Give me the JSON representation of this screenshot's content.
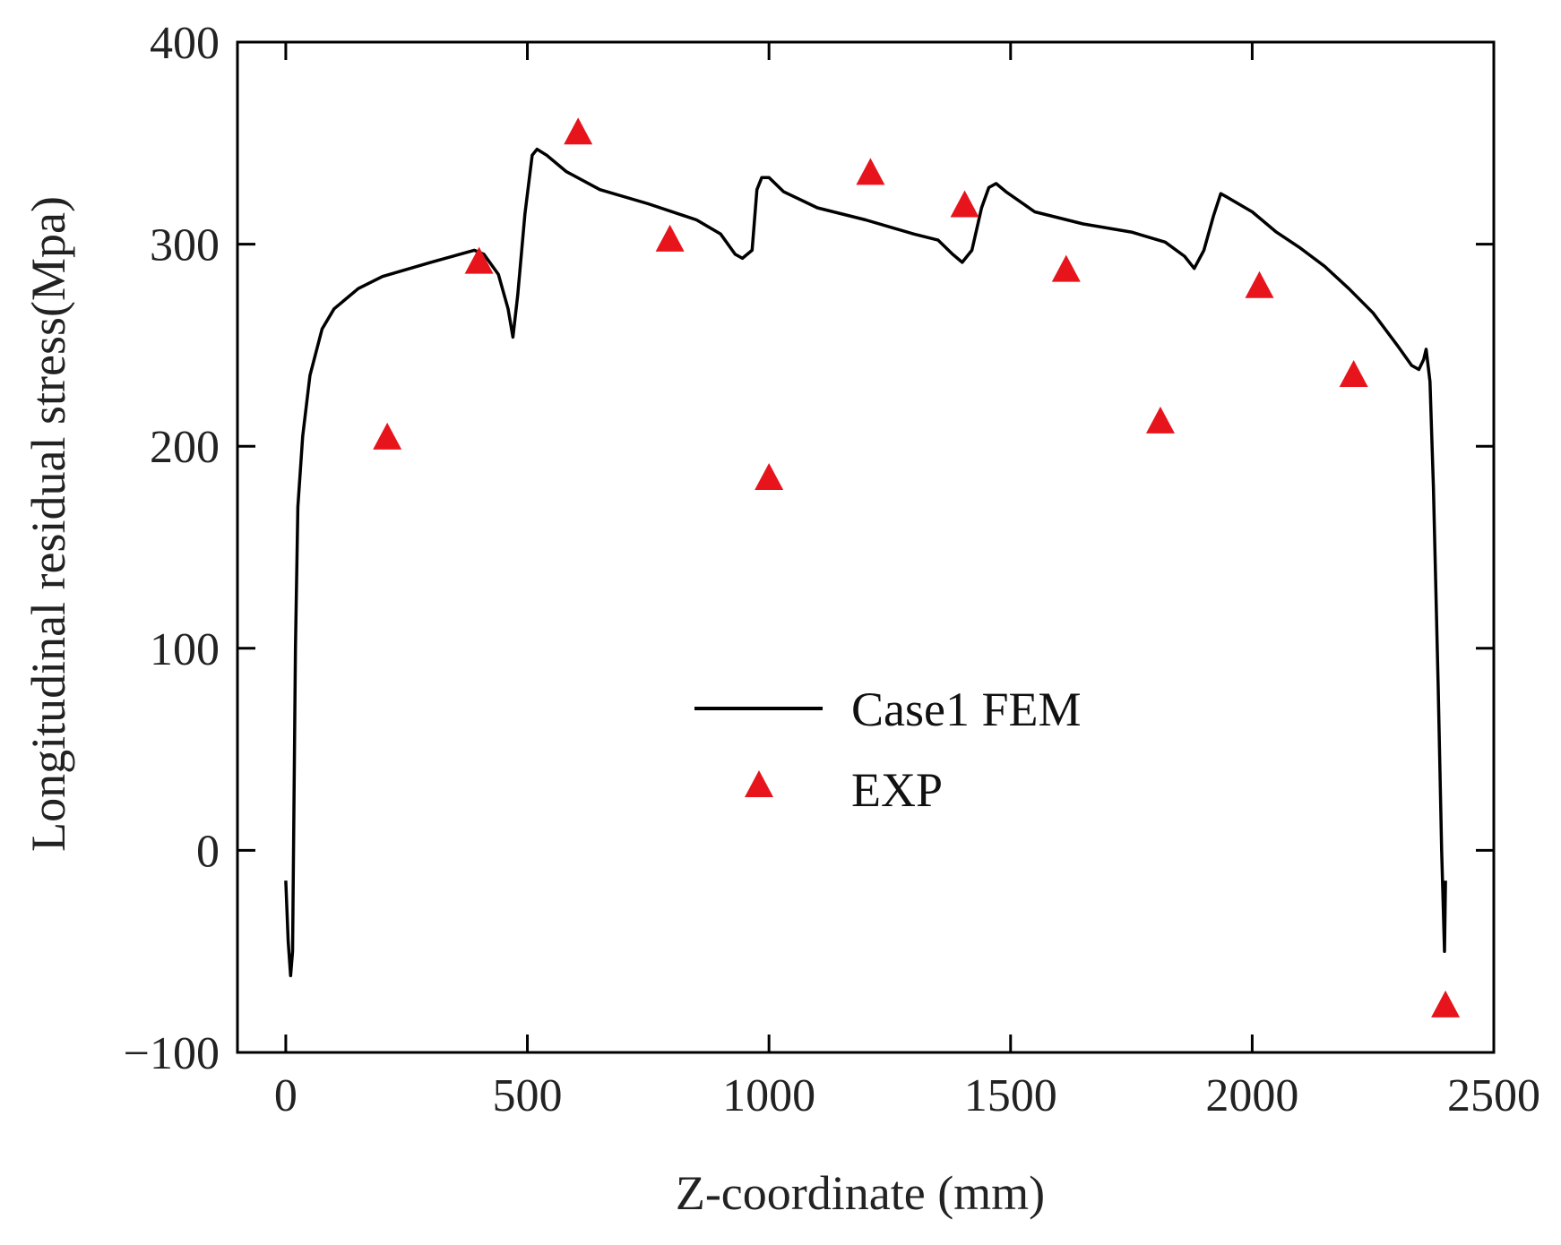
{
  "chart_data": {
    "type": "line",
    "title": "",
    "xlabel": "Z-coordinate (mm)",
    "ylabel": "Longitudinal residual stress(Mpa)",
    "xlim": [
      -100,
      2500
    ],
    "ylim": [
      -100,
      400
    ],
    "xticks": [
      0,
      500,
      1000,
      1500,
      2000,
      2500
    ],
    "yticks": [
      -100,
      0,
      100,
      200,
      300,
      400
    ],
    "xtick_labels": [
      "0",
      "500",
      "1000",
      "1500",
      "2000",
      "2500"
    ],
    "ytick_labels": [
      "−100",
      "0",
      "100",
      "200",
      "300",
      "400"
    ],
    "grid": false,
    "legend_position": "center",
    "series": [
      {
        "name": "Case1 FEM",
        "kind": "line",
        "color": "#000000",
        "points": [
          [
            0,
            -15
          ],
          [
            5,
            -45
          ],
          [
            10,
            -62
          ],
          [
            14,
            -50
          ],
          [
            20,
            100
          ],
          [
            25,
            170
          ],
          [
            35,
            205
          ],
          [
            50,
            235
          ],
          [
            75,
            258
          ],
          [
            100,
            268
          ],
          [
            150,
            278
          ],
          [
            200,
            284
          ],
          [
            300,
            291
          ],
          [
            390,
            297
          ],
          [
            410,
            295
          ],
          [
            440,
            285
          ],
          [
            460,
            268
          ],
          [
            470,
            254
          ],
          [
            480,
            275
          ],
          [
            495,
            315
          ],
          [
            510,
            344
          ],
          [
            520,
            347
          ],
          [
            540,
            344
          ],
          [
            580,
            336
          ],
          [
            650,
            327
          ],
          [
            750,
            320
          ],
          [
            850,
            312
          ],
          [
            900,
            305
          ],
          [
            930,
            295
          ],
          [
            945,
            293
          ],
          [
            955,
            295
          ],
          [
            965,
            297
          ],
          [
            975,
            327
          ],
          [
            985,
            333
          ],
          [
            1000,
            333
          ],
          [
            1030,
            326
          ],
          [
            1100,
            318
          ],
          [
            1200,
            312
          ],
          [
            1300,
            305
          ],
          [
            1350,
            302
          ],
          [
            1380,
            295
          ],
          [
            1400,
            291
          ],
          [
            1420,
            297
          ],
          [
            1440,
            318
          ],
          [
            1455,
            328
          ],
          [
            1470,
            330
          ],
          [
            1490,
            326
          ],
          [
            1550,
            316
          ],
          [
            1650,
            310
          ],
          [
            1750,
            306
          ],
          [
            1820,
            301
          ],
          [
            1860,
            294
          ],
          [
            1880,
            288
          ],
          [
            1900,
            297
          ],
          [
            1920,
            314
          ],
          [
            1935,
            325
          ],
          [
            1950,
            323
          ],
          [
            2000,
            316
          ],
          [
            2050,
            306
          ],
          [
            2100,
            298
          ],
          [
            2150,
            289
          ],
          [
            2200,
            278
          ],
          [
            2250,
            266
          ],
          [
            2300,
            250
          ],
          [
            2330,
            240
          ],
          [
            2345,
            238
          ],
          [
            2355,
            243
          ],
          [
            2360,
            248
          ],
          [
            2368,
            232
          ],
          [
            2375,
            180
          ],
          [
            2385,
            80
          ],
          [
            2392,
            0
          ],
          [
            2398,
            -50
          ],
          [
            2400,
            -15
          ]
        ]
      },
      {
        "name": "EXP",
        "kind": "scatter",
        "marker": "triangle",
        "color": "#e8141c",
        "points": [
          [
            210,
            205
          ],
          [
            400,
            292
          ],
          [
            605,
            356
          ],
          [
            795,
            303
          ],
          [
            1000,
            185
          ],
          [
            1210,
            336
          ],
          [
            1405,
            320
          ],
          [
            1615,
            288
          ],
          [
            1810,
            213
          ],
          [
            2015,
            280
          ],
          [
            2210,
            236
          ],
          [
            2400,
            -76
          ]
        ]
      }
    ]
  }
}
